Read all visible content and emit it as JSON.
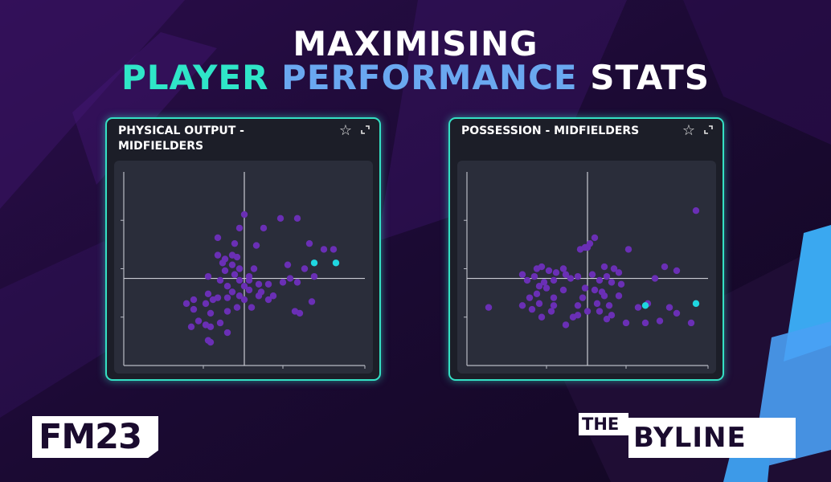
{
  "title": {
    "line1": "MAXIMISING",
    "line2_part1": "PLAYER",
    "line2_part2": "PERFORMANCE",
    "line2_part3": "STATS"
  },
  "colors": {
    "accent_teal": "#34e0c4",
    "point_purple": "#6a2fb5",
    "point_highlight": "#1fd6e0",
    "background": "#1a0b2e"
  },
  "icons": {
    "star": "star-icon",
    "expand": "expand-icon"
  },
  "logos": {
    "fm": "FM23",
    "byline_the": "THE",
    "byline_name": "BYLINE"
  },
  "chart_data": [
    {
      "type": "scatter",
      "title": "PHYSICAL OUTPUT - MIDFIELDERS",
      "xlim": [
        0,
        10
      ],
      "ylim": [
        0,
        10
      ],
      "ref_x": 5,
      "ref_y": 4.5,
      "series": [
        {
          "color": "#6a2fb5",
          "points": [
            [
              5,
              7.8
            ],
            [
              6.5,
              7.6
            ],
            [
              7.2,
              7.6
            ],
            [
              4.8,
              7.1
            ],
            [
              5.8,
              7.1
            ],
            [
              3.9,
              6.6
            ],
            [
              4.6,
              6.3
            ],
            [
              5.5,
              6.2
            ],
            [
              7.7,
              6.3
            ],
            [
              8.3,
              6.0
            ],
            [
              8.7,
              6.0
            ],
            [
              3.9,
              5.7
            ],
            [
              4.2,
              5.5
            ],
            [
              4.5,
              5.7
            ],
            [
              4.7,
              5.6
            ],
            [
              5.4,
              5.0
            ],
            [
              4.1,
              5.3
            ],
            [
              4.5,
              5.2
            ],
            [
              4.8,
              5.0
            ],
            [
              4.2,
              4.9
            ],
            [
              4.6,
              4.7
            ],
            [
              6.8,
              5.2
            ],
            [
              7.5,
              5.0
            ],
            [
              7.9,
              4.6
            ],
            [
              5.2,
              4.6
            ],
            [
              3.5,
              4.6
            ],
            [
              4.0,
              4.4
            ],
            [
              4.8,
              4.4
            ],
            [
              5.2,
              4.4
            ],
            [
              5.0,
              4.1
            ],
            [
              5.6,
              4.2
            ],
            [
              6.0,
              4.2
            ],
            [
              6.6,
              4.3
            ],
            [
              6.9,
              4.5
            ],
            [
              7.2,
              4.3
            ],
            [
              4.3,
              4.1
            ],
            [
              4.5,
              3.8
            ],
            [
              5.2,
              3.9
            ],
            [
              3.5,
              3.7
            ],
            [
              3.7,
              3.4
            ],
            [
              3.9,
              3.5
            ],
            [
              4.3,
              3.5
            ],
            [
              2.9,
              3.4
            ],
            [
              2.6,
              3.2
            ],
            [
              3.4,
              3.2
            ],
            [
              4.8,
              3.6
            ],
            [
              5.0,
              3.4
            ],
            [
              5.6,
              3.6
            ],
            [
              6.0,
              3.4
            ],
            [
              5.3,
              3.0
            ],
            [
              4.7,
              3.0
            ],
            [
              2.9,
              2.9
            ],
            [
              3.6,
              2.7
            ],
            [
              4.3,
              2.8
            ],
            [
              3.1,
              2.3
            ],
            [
              3.4,
              2.1
            ],
            [
              4.0,
              2.2
            ],
            [
              7.1,
              2.8
            ],
            [
              7.3,
              2.7
            ],
            [
              7.8,
              3.3
            ],
            [
              2.8,
              2.0
            ],
            [
              3.6,
              2.0
            ],
            [
              4.3,
              1.7
            ],
            [
              3.5,
              1.3
            ],
            [
              3.6,
              1.2
            ],
            [
              5.7,
              3.8
            ],
            [
              6.2,
              3.6
            ]
          ]
        },
        {
          "color": "#1fd6e0",
          "points": [
            [
              7.9,
              5.3
            ],
            [
              8.8,
              5.3
            ]
          ]
        }
      ]
    },
    {
      "type": "scatter",
      "title": "POSSESSION - MIDFIELDERS",
      "xlim": [
        0,
        10
      ],
      "ylim": [
        0,
        10
      ],
      "ref_x": 5,
      "ref_y": 4.5,
      "series": [
        {
          "color": "#6a2fb5",
          "points": [
            [
              5.3,
              6.6
            ],
            [
              5.1,
              6.3
            ],
            [
              5.0,
              6.1
            ],
            [
              4.7,
              6.0
            ],
            [
              4.9,
              6.1
            ],
            [
              6.7,
              6.0
            ],
            [
              2.9,
              5.0
            ],
            [
              3.1,
              5.1
            ],
            [
              3.4,
              4.9
            ],
            [
              3.7,
              4.8
            ],
            [
              4.0,
              5.0
            ],
            [
              4.1,
              4.7
            ],
            [
              5.7,
              5.1
            ],
            [
              6.1,
              5.0
            ],
            [
              6.3,
              4.8
            ],
            [
              8.2,
              5.1
            ],
            [
              9.5,
              8.0
            ],
            [
              2.3,
              4.7
            ],
            [
              2.5,
              4.4
            ],
            [
              2.8,
              4.6
            ],
            [
              3.2,
              4.3
            ],
            [
              3.6,
              4.4
            ],
            [
              4.3,
              4.5
            ],
            [
              4.6,
              4.6
            ],
            [
              5.2,
              4.7
            ],
            [
              5.5,
              4.4
            ],
            [
              5.8,
              4.6
            ],
            [
              6.0,
              4.3
            ],
            [
              6.4,
              4.2
            ],
            [
              7.8,
              4.5
            ],
            [
              8.7,
              4.9
            ],
            [
              3.0,
              4.1
            ],
            [
              3.3,
              4.0
            ],
            [
              4.0,
              3.9
            ],
            [
              4.9,
              4.0
            ],
            [
              5.3,
              3.9
            ],
            [
              5.6,
              3.8
            ],
            [
              2.6,
              3.5
            ],
            [
              2.9,
              3.7
            ],
            [
              3.6,
              3.5
            ],
            [
              4.8,
              3.5
            ],
            [
              5.7,
              3.6
            ],
            [
              6.3,
              3.6
            ],
            [
              2.3,
              3.1
            ],
            [
              3.0,
              3.2
            ],
            [
              3.6,
              3.1
            ],
            [
              4.6,
              3.1
            ],
            [
              5.4,
              3.2
            ],
            [
              5.9,
              3.1
            ],
            [
              7.1,
              3.0
            ],
            [
              7.5,
              3.2
            ],
            [
              8.4,
              3.0
            ],
            [
              2.7,
              2.9
            ],
            [
              3.5,
              2.8
            ],
            [
              4.6,
              2.6
            ],
            [
              5.0,
              2.8
            ],
            [
              5.5,
              2.8
            ],
            [
              6.0,
              2.6
            ],
            [
              0.9,
              3.0
            ],
            [
              3.1,
              2.5
            ],
            [
              4.4,
              2.5
            ],
            [
              5.8,
              2.4
            ],
            [
              6.6,
              2.2
            ],
            [
              7.4,
              2.2
            ],
            [
              8.0,
              2.3
            ],
            [
              9.3,
              2.2
            ],
            [
              4.1,
              2.1
            ],
            [
              8.7,
              2.7
            ]
          ]
        },
        {
          "color": "#1fd6e0",
          "points": [
            [
              7.4,
              3.1
            ],
            [
              9.5,
              3.2
            ]
          ]
        }
      ]
    }
  ]
}
